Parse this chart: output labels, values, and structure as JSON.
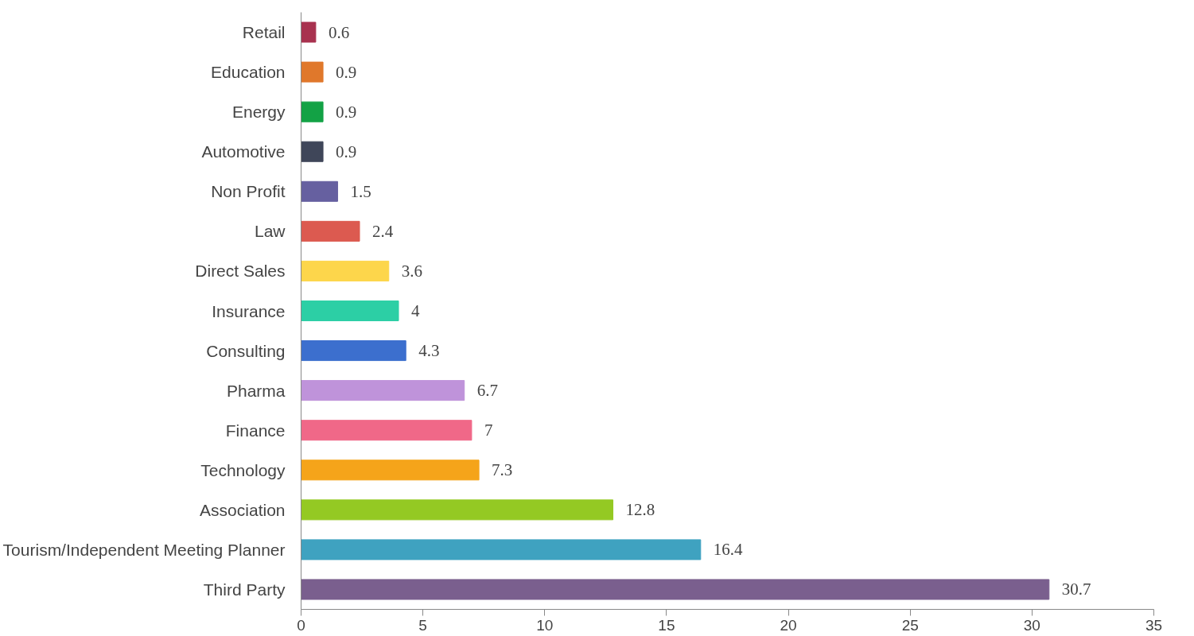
{
  "chart_data": {
    "type": "bar",
    "orientation": "horizontal",
    "categories": [
      "Retail",
      "Education",
      "Energy",
      "Automotive",
      "Non Profit",
      "Law",
      "Direct Sales",
      "Insurance",
      "Consulting",
      "Pharma",
      "Finance",
      "Technology",
      "Association",
      "Tourism/Independent Meeting Planner",
      "Third Party"
    ],
    "values": [
      0.6,
      0.9,
      0.9,
      0.9,
      1.5,
      2.4,
      3.6,
      4,
      4.3,
      6.7,
      7,
      7.3,
      12.8,
      16.4,
      30.7
    ],
    "colors": [
      "#a8324f",
      "#e0782b",
      "#13a245",
      "#3f4659",
      "#6660a0",
      "#dc5a50",
      "#fdd64b",
      "#2ccfa5",
      "#3c6fce",
      "#bf93da",
      "#f06888",
      "#f5a41a",
      "#94c923",
      "#3fa2c0",
      "#7a5f8e"
    ],
    "xlim": [
      0,
      35
    ],
    "xticks": [
      0,
      5,
      10,
      15,
      20,
      25,
      30,
      35
    ],
    "grid": false,
    "data_labels": true
  }
}
